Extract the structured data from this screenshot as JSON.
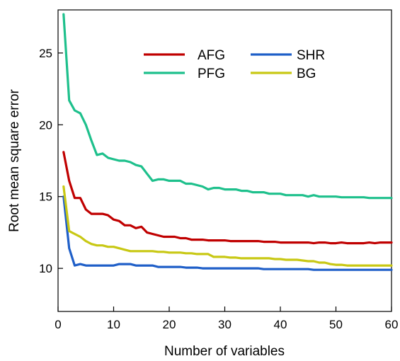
{
  "chart_data": {
    "type": "line",
    "title": "",
    "xlabel": "Number of variables",
    "ylabel": "Root mean square error",
    "xlim": [
      0,
      60
    ],
    "ylim": [
      7,
      28
    ],
    "xticks": [
      0,
      10,
      20,
      30,
      40,
      50,
      60
    ],
    "yticks": [
      10,
      15,
      20,
      25
    ],
    "grid": false,
    "legend_position": "top-right",
    "x": [
      1,
      2,
      3,
      4,
      5,
      6,
      7,
      8,
      9,
      10,
      11,
      12,
      13,
      14,
      15,
      16,
      17,
      18,
      19,
      20,
      21,
      22,
      23,
      24,
      25,
      26,
      27,
      28,
      29,
      30,
      31,
      32,
      33,
      34,
      35,
      36,
      37,
      38,
      39,
      40,
      41,
      42,
      43,
      44,
      45,
      46,
      47,
      48,
      49,
      50,
      51,
      52,
      53,
      54,
      55,
      56,
      57,
      58,
      59,
      60
    ],
    "series": [
      {
        "name": "AFG",
        "color": "#c00000",
        "values": [
          18.1,
          16.1,
          14.9,
          14.9,
          14.1,
          13.8,
          13.8,
          13.8,
          13.7,
          13.4,
          13.3,
          13.0,
          13.0,
          12.8,
          12.9,
          12.5,
          12.4,
          12.3,
          12.2,
          12.2,
          12.2,
          12.1,
          12.1,
          12.0,
          12.0,
          12.0,
          11.95,
          11.95,
          11.95,
          11.95,
          11.9,
          11.9,
          11.9,
          11.9,
          11.9,
          11.9,
          11.85,
          11.85,
          11.85,
          11.8,
          11.8,
          11.8,
          11.8,
          11.8,
          11.8,
          11.75,
          11.8,
          11.8,
          11.75,
          11.75,
          11.8,
          11.75,
          11.75,
          11.75,
          11.75,
          11.8,
          11.75,
          11.8,
          11.8,
          11.8
        ]
      },
      {
        "name": "PFG",
        "color": "#1ec08c",
        "values": [
          27.7,
          21.7,
          21.0,
          20.8,
          20.0,
          18.9,
          17.9,
          18.0,
          17.7,
          17.6,
          17.5,
          17.5,
          17.4,
          17.2,
          17.1,
          16.6,
          16.1,
          16.2,
          16.2,
          16.1,
          16.1,
          16.1,
          15.9,
          15.9,
          15.8,
          15.7,
          15.5,
          15.6,
          15.6,
          15.5,
          15.5,
          15.5,
          15.4,
          15.4,
          15.3,
          15.3,
          15.3,
          15.2,
          15.2,
          15.2,
          15.1,
          15.1,
          15.1,
          15.1,
          15.0,
          15.1,
          15.0,
          15.0,
          15.0,
          15.0,
          14.95,
          14.95,
          14.95,
          14.95,
          14.95,
          14.9,
          14.9,
          14.9,
          14.9,
          14.9
        ]
      },
      {
        "name": "SHR",
        "color": "#1f5fc8",
        "values": [
          15.0,
          11.4,
          10.2,
          10.3,
          10.2,
          10.2,
          10.2,
          10.2,
          10.2,
          10.2,
          10.3,
          10.3,
          10.3,
          10.2,
          10.2,
          10.2,
          10.2,
          10.1,
          10.1,
          10.1,
          10.1,
          10.1,
          10.05,
          10.05,
          10.05,
          10.0,
          10.0,
          10.0,
          10.0,
          10.0,
          10.0,
          10.0,
          10.0,
          10.0,
          10.0,
          10.0,
          9.95,
          9.95,
          9.95,
          9.95,
          9.95,
          9.95,
          9.95,
          9.95,
          9.95,
          9.9,
          9.9,
          9.9,
          9.9,
          9.9,
          9.9,
          9.9,
          9.9,
          9.9,
          9.9,
          9.9,
          9.9,
          9.9,
          9.9,
          9.9
        ]
      },
      {
        "name": "BG",
        "color": "#c8c814",
        "values": [
          15.7,
          12.6,
          12.4,
          12.2,
          11.9,
          11.7,
          11.6,
          11.6,
          11.5,
          11.5,
          11.4,
          11.3,
          11.2,
          11.2,
          11.2,
          11.2,
          11.2,
          11.15,
          11.15,
          11.1,
          11.1,
          11.1,
          11.05,
          11.05,
          11.0,
          11.0,
          11.0,
          10.8,
          10.8,
          10.8,
          10.75,
          10.75,
          10.7,
          10.7,
          10.7,
          10.7,
          10.7,
          10.7,
          10.65,
          10.65,
          10.6,
          10.6,
          10.6,
          10.55,
          10.5,
          10.5,
          10.4,
          10.4,
          10.3,
          10.25,
          10.25,
          10.2,
          10.2,
          10.2,
          10.2,
          10.2,
          10.2,
          10.2,
          10.2,
          10.2
        ]
      }
    ]
  }
}
